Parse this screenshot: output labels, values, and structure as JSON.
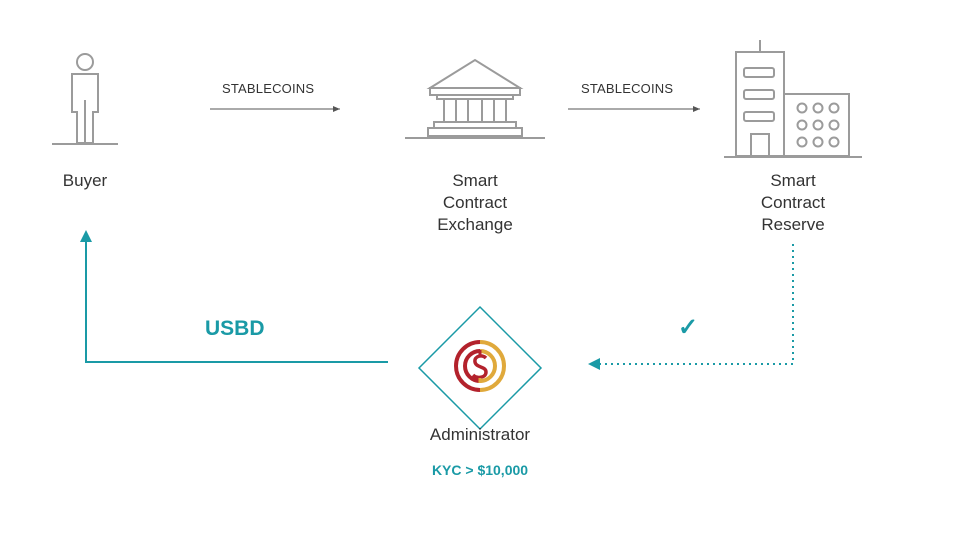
{
  "nodes": {
    "buyer": {
      "label": "Buyer",
      "icon": "person-icon"
    },
    "exchange": {
      "label_line1": "Smart",
      "label_line2": "Contract",
      "label_line3": "Exchange",
      "icon": "bank-building-icon"
    },
    "reserve": {
      "label_line1": "Smart",
      "label_line2": "Contract",
      "label_line3": "Reserve",
      "icon": "office-buildings-icon"
    },
    "administrator": {
      "label": "Administrator",
      "icon": "stablecoin-logo-icon",
      "note": "KYC > $10,000"
    }
  },
  "edges": {
    "buyer_to_exchange": {
      "label": "STABLECOINS"
    },
    "exchange_to_reserve": {
      "label": "STABLECOINS"
    },
    "admin_to_buyer": {
      "label": "USBD"
    },
    "reserve_to_admin": {
      "label": "✓"
    }
  },
  "colors": {
    "accent": "#1a9aa6",
    "icon_stroke": "#9b9b9b",
    "logo_red": "#b3222c",
    "logo_gold": "#e0a93b",
    "text": "#333333"
  }
}
